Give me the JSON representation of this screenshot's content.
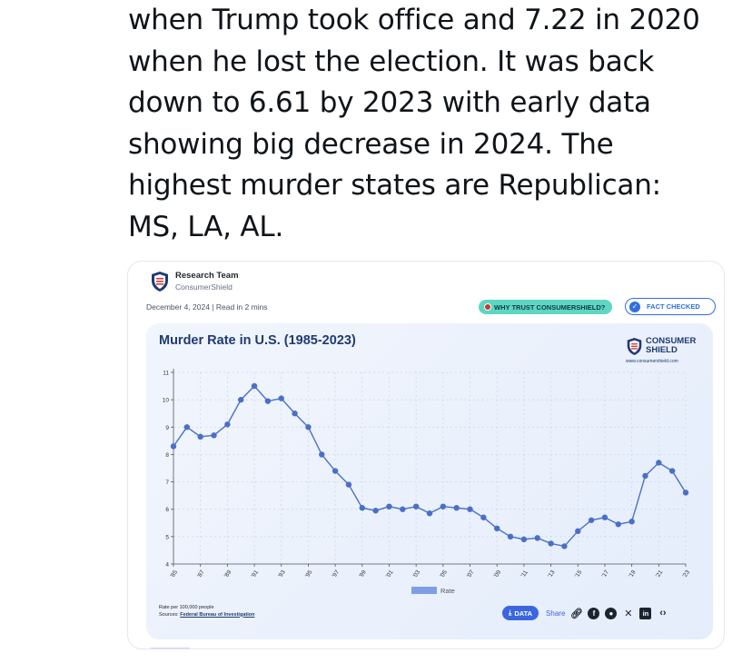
{
  "tweet": {
    "lines": [
      "when Trump took office and 7.22 in 2020",
      "when he lost the election. It was back",
      "down to 6.61 by 2023 with early data",
      "showing big decrease in 2024. The",
      "highest murder states are Republican:",
      "MS, LA, AL."
    ]
  },
  "card": {
    "author_name": "Research Team",
    "author_org": "ConsumerShield",
    "meta": "December 4, 2024 | Read in 2 mins",
    "trust_badge": "WHY TRUST CONSUMERSHIELD?",
    "fact_badge": "FACT CHECKED",
    "brand_line1": "CONSUMER",
    "brand_line2": "SHIELD",
    "brand_url": "www.consumershield.com",
    "footnote_line1": "Rate per 100,000 people",
    "footnote_sources_label": "Sources:",
    "footnote_sources_link": "Federal Bureau of Investigation",
    "data_button": "DATA",
    "share_label": "Share",
    "icons": [
      "shield-logo-icon",
      "download-icon",
      "link-icon",
      "facebook-icon",
      "reddit-icon",
      "x-icon",
      "linkedin-icon",
      "embed-icon"
    ]
  },
  "colors": {
    "line": "#4a6fc9",
    "point": "#4a6fc9",
    "title": "#1f3a73",
    "panel": "#e9f0fc",
    "accent": "#3a66e0",
    "teal_badge": "#5ed6c3"
  },
  "chart_data": {
    "type": "line",
    "title": "Murder Rate in U.S. (1985-2023)",
    "xlabel": "",
    "ylabel": "",
    "x": [
      1985,
      1986,
      1987,
      1988,
      1989,
      1990,
      1991,
      1992,
      1993,
      1994,
      1995,
      1996,
      1997,
      1998,
      1999,
      2000,
      2001,
      2002,
      2003,
      2004,
      2005,
      2006,
      2007,
      2008,
      2009,
      2010,
      2011,
      2012,
      2013,
      2014,
      2015,
      2016,
      2017,
      2018,
      2019,
      2020,
      2021,
      2022,
      2023
    ],
    "x_tick_labels": [
      "'85",
      "'87",
      "'89",
      "'91",
      "'93",
      "'95",
      "'97",
      "'99",
      "'01",
      "'03",
      "'05",
      "'07",
      "'09",
      "'11",
      "'13",
      "'15",
      "'17",
      "'19",
      "'21",
      "'23"
    ],
    "series": [
      {
        "name": "Rate",
        "values": [
          8.3,
          9.0,
          8.65,
          8.7,
          9.1,
          10.0,
          10.5,
          9.95,
          10.05,
          9.5,
          9.0,
          8.0,
          7.4,
          6.9,
          6.05,
          5.95,
          6.1,
          6.0,
          6.1,
          5.85,
          6.1,
          6.05,
          6.0,
          5.7,
          5.3,
          5.0,
          4.9,
          4.95,
          4.75,
          4.65,
          5.2,
          5.6,
          5.7,
          5.45,
          5.55,
          7.22,
          7.7,
          7.4,
          6.61
        ]
      }
    ],
    "y_tick_labels": [
      "4",
      "5",
      "6",
      "7",
      "8",
      "9",
      "10",
      "11"
    ],
    "ylim": [
      4,
      11
    ],
    "grid": true,
    "legend": "bottom-center"
  }
}
